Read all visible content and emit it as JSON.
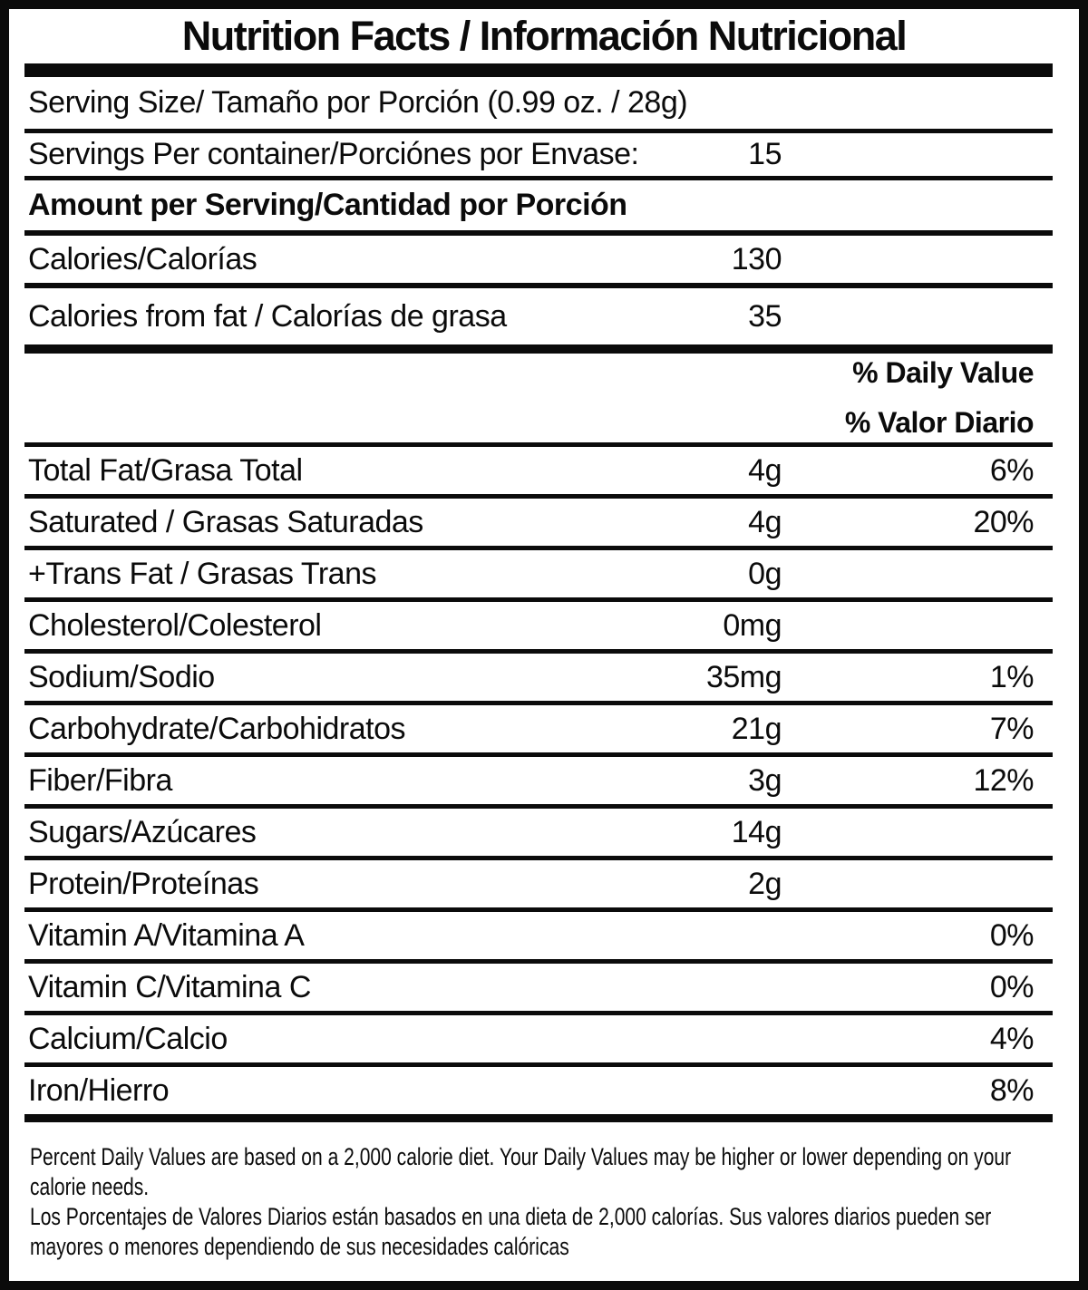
{
  "colors": {
    "ink": "#0b0b0b",
    "background": "#ffffff"
  },
  "title": "Nutrition Facts / Información Nutricional",
  "serving": {
    "serving_size": "Serving Size/ Tamaño por Porción  (0.99 oz. / 28g)",
    "servings_per_container_label": "Servings Per container/Porciónes por Envase:",
    "servings_per_container_value": "15"
  },
  "amount_per_serving_heading": "Amount per Serving/Cantidad por Porción",
  "calories": {
    "label": "Calories/Calorías",
    "value": "130"
  },
  "calories_from_fat": {
    "label": "Calories from fat / Calorías de grasa",
    "value": "35"
  },
  "daily_value_header": {
    "en": "% Daily Value",
    "es": "% Valor Diario"
  },
  "nutrients": [
    {
      "label": "Total Fat/Grasa Total",
      "amount": "4g",
      "dv": "6%"
    },
    {
      "label": "Saturated / Grasas Saturadas",
      "amount": "4g",
      "dv": "20%"
    },
    {
      "label": "+Trans Fat / Grasas Trans",
      "amount": "0g",
      "dv": ""
    },
    {
      "label": "Cholesterol/Colesterol",
      "amount": "0mg",
      "dv": ""
    },
    {
      "label": "Sodium/Sodio",
      "amount": "35mg",
      "dv": "1%"
    },
    {
      "label": "Carbohydrate/Carbohidratos",
      "amount": "21g",
      "dv": "7%"
    },
    {
      "label": "Fiber/Fibra",
      "amount": "3g",
      "dv": "12%"
    },
    {
      "label": "Sugars/Azúcares",
      "amount": "14g",
      "dv": ""
    },
    {
      "label": "Protein/Proteínas",
      "amount": "2g",
      "dv": ""
    },
    {
      "label": "Vitamin A/Vitamina A",
      "amount": "",
      "dv": "0%"
    },
    {
      "label": "Vitamin C/Vitamina C",
      "amount": "",
      "dv": "0%"
    },
    {
      "label": "Calcium/Calcio",
      "amount": "",
      "dv": "4%"
    },
    {
      "label": "Iron/Hierro",
      "amount": "",
      "dv": "8%"
    }
  ],
  "footnotes": {
    "en_lines": [
      "Percent Daily Values are based on a 2,000 calorie diet. Your Daily Values may be higher or lower depending on your",
      "calorie needs."
    ],
    "es_lines": [
      "Los Porcentajes de Valores Diarios están basados en una dieta de 2,000 calorías. Sus valores diarios pueden ser",
      "mayores o menores dependiendo de sus necesidades calóricas"
    ]
  }
}
